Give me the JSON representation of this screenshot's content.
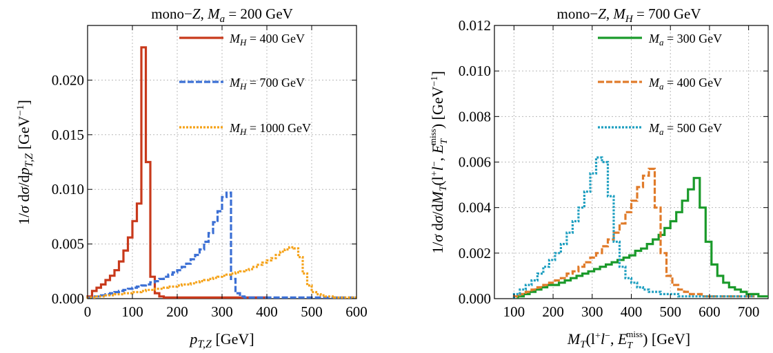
{
  "chart_data": [
    {
      "type": "line",
      "title": "mono−Z,  M_a = 200 GeV",
      "title_parts": {
        "prefix": "mono−",
        "var": "Z",
        "sep": ",  ",
        "mvar": "M",
        "msub": "a",
        "suffix": " = 200 GeV"
      },
      "xlabel_parts": {
        "var": "p",
        "sub": "T,Z",
        "unit": "  [GeV]"
      },
      "ylabel_parts": {
        "a": "1/",
        "b": "σ",
        "c": " d",
        "d": "σ",
        "e": "/d",
        "f": "p",
        "g": "T,Z",
        "h": "  [GeV",
        "i": "−1",
        "j": "]"
      },
      "xlim": [
        0,
        600
      ],
      "ylim": [
        0,
        0.025
      ],
      "xticks": [
        0,
        100,
        200,
        300,
        400,
        500,
        600
      ],
      "xtick_labels": [
        "0",
        "100",
        "200",
        "300",
        "400",
        "500",
        "600"
      ],
      "yticks": [
        0,
        0.005,
        0.01,
        0.015,
        0.02
      ],
      "ytick_labels": [
        "0.000",
        "0.005",
        "0.010",
        "0.015",
        "0.020"
      ],
      "grid": true,
      "legend_position": "top-right",
      "bin_width": 10,
      "series": [
        {
          "name": "M_H = 400 GeV",
          "legend_label": {
            "var": "M",
            "sub": "H",
            "rest": " = 400 GeV"
          },
          "color": "#c8391b",
          "style": "solid",
          "x": [
            0,
            10,
            20,
            30,
            40,
            50,
            60,
            70,
            80,
            90,
            100,
            110,
            120,
            130,
            140,
            150,
            160,
            170,
            180,
            190,
            200,
            210,
            220,
            230,
            240,
            250,
            260,
            270,
            280,
            290,
            300,
            310,
            320,
            330,
            340,
            350,
            360,
            370,
            380,
            390
          ],
          "y": [
            0.0002,
            0.0007,
            0.001,
            0.0013,
            0.0017,
            0.0021,
            0.0026,
            0.0034,
            0.0044,
            0.0056,
            0.0071,
            0.0087,
            0.023,
            0.0125,
            0.002,
            0.0005,
            0.0002,
            0.0001,
            0.0001,
            0.0001,
            0.0001,
            0.0001,
            0.0001,
            0.0001,
            0.0001,
            0.0001,
            0.0001,
            0.0001,
            0.0001,
            0.0001,
            0.0001,
            0.0001,
            0.0001,
            0.0001,
            0.0001,
            0.0001,
            0.0001,
            0.0001,
            0.0001,
            0.0001
          ]
        },
        {
          "name": "M_H = 700 GeV",
          "legend_label": {
            "var": "M",
            "sub": "H",
            "rest": " = 700 GeV"
          },
          "color": "#3b6fd4",
          "style": "dashed",
          "x": [
            0,
            10,
            20,
            30,
            40,
            50,
            60,
            70,
            80,
            90,
            100,
            110,
            120,
            130,
            140,
            150,
            160,
            170,
            180,
            190,
            200,
            210,
            220,
            230,
            240,
            250,
            260,
            270,
            280,
            290,
            300,
            310,
            320,
            330,
            340,
            350,
            360,
            370,
            380,
            390,
            400,
            410,
            420,
            430,
            440,
            450,
            460,
            470,
            480,
            490,
            500,
            510,
            520,
            530,
            540,
            550,
            560,
            570,
            580,
            590
          ],
          "y": [
            0.0001,
            0.0002,
            0.0002,
            0.0003,
            0.0004,
            0.0005,
            0.0006,
            0.0007,
            0.0008,
            0.0009,
            0.001,
            0.0011,
            0.0012,
            0.0013,
            0.0015,
            0.0016,
            0.0018,
            0.002,
            0.0022,
            0.0024,
            0.0026,
            0.0029,
            0.0032,
            0.0036,
            0.004,
            0.0045,
            0.0052,
            0.006,
            0.007,
            0.008,
            0.0093,
            0.0097,
            0.0018,
            0.0005,
            0.0002,
            0.0001,
            0.0001,
            0.0001,
            0.0001,
            0.0001,
            0.0001,
            0.0001,
            0.0001,
            0.0001,
            0.0001,
            0.0001,
            0.0001,
            0.0001,
            0.0001,
            0.0001,
            0.0001,
            0.0001,
            0.0001,
            0.0001,
            0.0001,
            0.0001,
            0.0001,
            0.0001,
            0.0001,
            0.0001
          ]
        },
        {
          "name": "M_H = 1000 GeV",
          "legend_label": {
            "var": "M",
            "sub": "H",
            "rest": " = 1000 GeV"
          },
          "color": "#f5a218",
          "style": "dotted",
          "x": [
            0,
            10,
            20,
            30,
            40,
            50,
            60,
            70,
            80,
            90,
            100,
            110,
            120,
            130,
            140,
            150,
            160,
            170,
            180,
            190,
            200,
            210,
            220,
            230,
            240,
            250,
            260,
            270,
            280,
            290,
            300,
            310,
            320,
            330,
            340,
            350,
            360,
            370,
            380,
            390,
            400,
            410,
            420,
            430,
            440,
            450,
            460,
            470,
            480,
            490,
            500,
            510,
            520,
            530,
            540,
            550,
            560,
            570,
            580,
            590
          ],
          "y": [
            0.0001,
            0.0001,
            0.0002,
            0.0002,
            0.0003,
            0.0003,
            0.0004,
            0.0004,
            0.0005,
            0.0005,
            0.0006,
            0.0006,
            0.0007,
            0.0008,
            0.0008,
            0.0009,
            0.0009,
            0.001,
            0.0011,
            0.0011,
            0.0012,
            0.0013,
            0.0013,
            0.0014,
            0.0015,
            0.0016,
            0.0017,
            0.0018,
            0.0019,
            0.002,
            0.0021,
            0.0022,
            0.0023,
            0.0024,
            0.0025,
            0.0026,
            0.0027,
            0.0029,
            0.0031,
            0.0033,
            0.0035,
            0.0037,
            0.004,
            0.0043,
            0.0045,
            0.0047,
            0.0046,
            0.0038,
            0.0023,
            0.0012,
            0.0006,
            0.0004,
            0.0003,
            0.0002,
            0.0002,
            0.0001,
            0.0001,
            0.0001,
            0.0001,
            0.0001
          ]
        }
      ]
    },
    {
      "type": "line",
      "title": "mono−Z,  M_H = 700 GeV",
      "title_parts": {
        "prefix": "mono−",
        "var": "Z",
        "sep": ",  ",
        "mvar": "M",
        "msub": "H",
        "suffix": " = 700 GeV"
      },
      "xlabel_parts": {
        "var": "M",
        "sub": "T",
        "mid": "(l",
        "sup1": "+",
        "mid2": "l",
        "sup2": "−",
        "mid3": ", ",
        "evar": "E",
        "esub": "T",
        "esup": "miss",
        "end": ")  [GeV]"
      },
      "ylabel_parts": {
        "a": "1/",
        "b": "σ",
        "c": " d",
        "d": "σ",
        "e": "/d",
        "f": "M",
        "g": "T",
        "h": "(l",
        "i": "+",
        "j": "l",
        "k": "−",
        "l": ", ",
        "m": "E",
        "n": "T",
        "o": "miss",
        "p": ")  [GeV",
        "q": "−1",
        "r": "]"
      },
      "xlim": [
        50,
        750
      ],
      "ylim": [
        0,
        0.012
      ],
      "xticks": [
        100,
        200,
        300,
        400,
        500,
        600,
        700
      ],
      "xtick_labels": [
        "100",
        "200",
        "300",
        "400",
        "500",
        "600",
        "700"
      ],
      "yticks": [
        0,
        0.002,
        0.004,
        0.006,
        0.008,
        0.01,
        0.012
      ],
      "ytick_labels": [
        "0.000",
        "0.002",
        "0.004",
        "0.006",
        "0.008",
        "0.010",
        "0.012"
      ],
      "grid": true,
      "legend_position": "top-right",
      "bin_width": 15,
      "series": [
        {
          "name": "M_a = 300 GeV",
          "legend_label": {
            "var": "M",
            "sub": "a",
            "rest": " = 300 GeV"
          },
          "color": "#1a9a2a",
          "style": "solid",
          "x": [
            110,
            125,
            140,
            155,
            170,
            185,
            200,
            215,
            230,
            245,
            260,
            275,
            290,
            305,
            320,
            335,
            350,
            365,
            380,
            395,
            410,
            425,
            440,
            455,
            470,
            485,
            500,
            515,
            530,
            545,
            560,
            575,
            590,
            605,
            620,
            635,
            650,
            665,
            680,
            695,
            710,
            725,
            740
          ],
          "y": [
            0.0001,
            0.0002,
            0.0003,
            0.0004,
            0.0005,
            0.0006,
            0.0006,
            0.0007,
            0.0008,
            0.0009,
            0.001,
            0.0011,
            0.0012,
            0.0013,
            0.0014,
            0.0015,
            0.0016,
            0.0017,
            0.0018,
            0.0019,
            0.0021,
            0.0022,
            0.0024,
            0.0026,
            0.0028,
            0.0031,
            0.0034,
            0.0038,
            0.0043,
            0.0048,
            0.0053,
            0.004,
            0.0025,
            0.0015,
            0.001,
            0.0007,
            0.0005,
            0.0004,
            0.0003,
            0.0002,
            0.0002,
            0.0001,
            0.0001
          ]
        },
        {
          "name": "M_a = 400 GeV",
          "legend_label": {
            "var": "M",
            "sub": "a",
            "rest": " = 400 GeV"
          },
          "color": "#e07b2a",
          "style": "dashed",
          "x": [
            100,
            115,
            130,
            145,
            160,
            175,
            190,
            205,
            220,
            235,
            250,
            265,
            280,
            295,
            310,
            325,
            340,
            355,
            370,
            385,
            400,
            415,
            430,
            445,
            460,
            475,
            490,
            505,
            520,
            535,
            550,
            565,
            580,
            595,
            610,
            625,
            640,
            655,
            670,
            685,
            700
          ],
          "y": [
            0.0001,
            0.0002,
            0.0003,
            0.0004,
            0.0005,
            0.0006,
            0.0007,
            0.0008,
            0.0009,
            0.0011,
            0.0012,
            0.0014,
            0.0016,
            0.0018,
            0.002,
            0.0023,
            0.0026,
            0.0029,
            0.0033,
            0.0038,
            0.0043,
            0.0049,
            0.0054,
            0.0057,
            0.004,
            0.002,
            0.001,
            0.0006,
            0.0004,
            0.0003,
            0.0002,
            0.0002,
            0.0001,
            0.0001,
            0.0001,
            0.0001,
            0.0001,
            0.0001,
            0.0001,
            0.0001,
            0.0001
          ]
        },
        {
          "name": "M_a = 500 GeV",
          "legend_label": {
            "var": "M",
            "sub": "a",
            "rest": " = 500 GeV"
          },
          "color": "#1f9fc0",
          "style": "dotted",
          "x": [
            100,
            115,
            130,
            145,
            160,
            175,
            190,
            205,
            220,
            235,
            250,
            265,
            280,
            295,
            310,
            325,
            340,
            355,
            370,
            385,
            400,
            415,
            430,
            445,
            460,
            475,
            490,
            505,
            520,
            535,
            550,
            565,
            580,
            595,
            610,
            625,
            640,
            655,
            670,
            685,
            700
          ],
          "y": [
            0.0002,
            0.0004,
            0.0006,
            0.0008,
            0.0011,
            0.0014,
            0.0017,
            0.002,
            0.0024,
            0.0029,
            0.0034,
            0.004,
            0.0047,
            0.0055,
            0.0062,
            0.006,
            0.0045,
            0.0025,
            0.0014,
            0.0009,
            0.0007,
            0.0005,
            0.0004,
            0.0003,
            0.0003,
            0.0002,
            0.0002,
            0.0002,
            0.0001,
            0.0001,
            0.0001,
            0.0001,
            0.0001,
            0.0001,
            0.0001,
            0.0001,
            0.0001,
            0.0001,
            0.0001,
            0.0001,
            0.0001
          ]
        }
      ]
    }
  ]
}
